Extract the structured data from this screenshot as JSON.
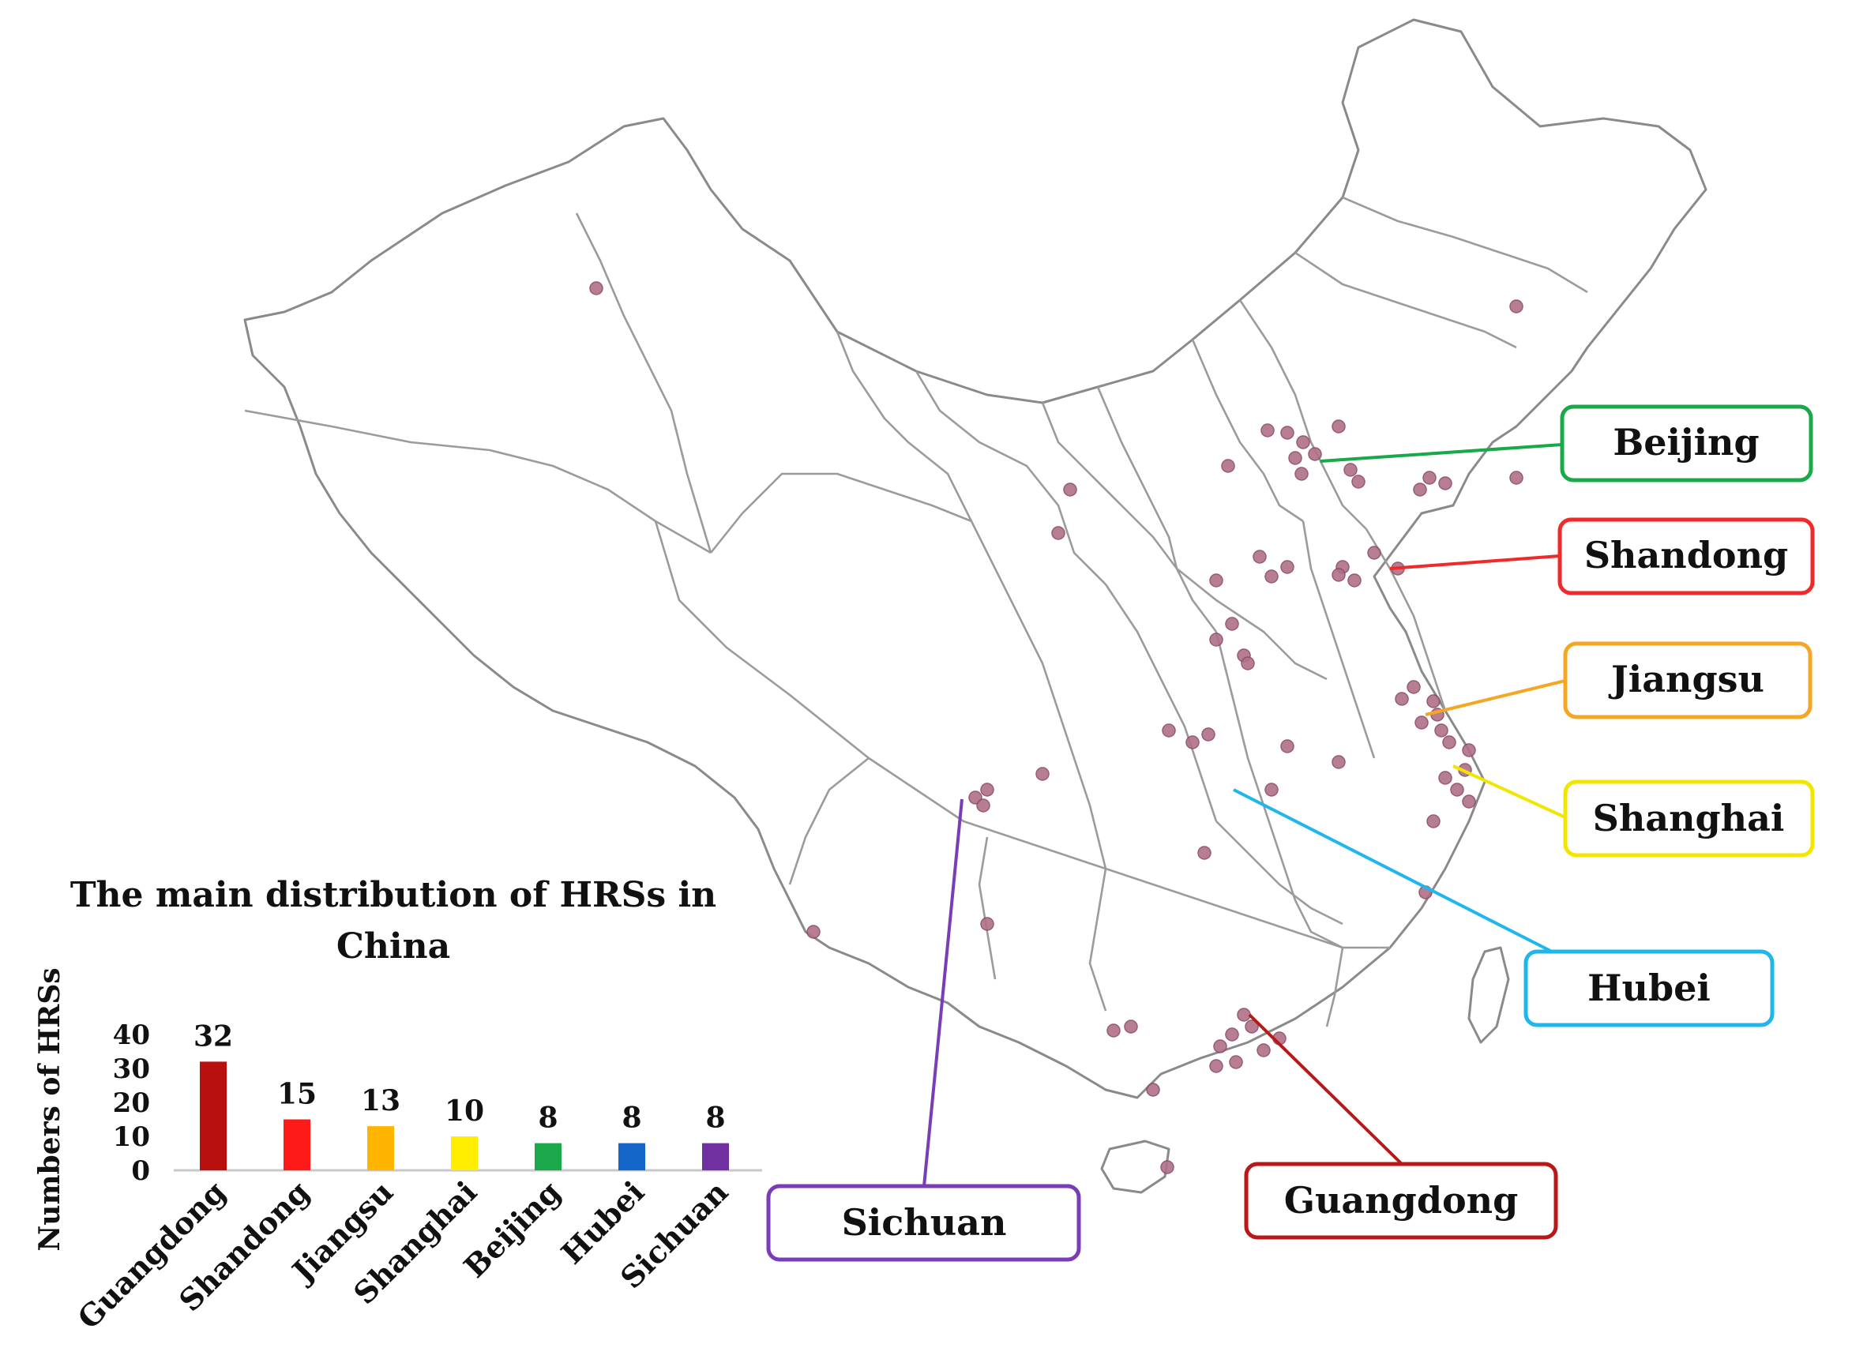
{
  "map": {
    "region": "China",
    "callouts": [
      {
        "label": "Beijing",
        "color": "#19a84a"
      },
      {
        "label": "Shandong",
        "color": "#f02a2a"
      },
      {
        "label": "Jiangsu",
        "color": "#f5a623"
      },
      {
        "label": "Shanghai",
        "color": "#f2e600"
      },
      {
        "label": "Hubei",
        "color": "#1fb6ee"
      },
      {
        "label": "Sichuan",
        "color": "#7a3db8"
      },
      {
        "label": "Guangdong",
        "color": "#b81818"
      }
    ],
    "marker_color": "#b07088"
  },
  "chart_data": {
    "type": "bar",
    "title": "The main distribution of HRSs in China",
    "title_line1": "The main distribution of HRSs in",
    "title_line2": "China",
    "ylabel": "Numbers of HRSs",
    "xlabel": "",
    "categories": [
      "Guangdong",
      "Shandong",
      "Jiangsu",
      "Shanghai",
      "Beijing",
      "Hubei",
      "Sichuan"
    ],
    "values": [
      32,
      15,
      13,
      10,
      8,
      8,
      8
    ],
    "colors": [
      "#b80f0f",
      "#ff1a1a",
      "#ffb400",
      "#ffee00",
      "#1aa84a",
      "#1467c8",
      "#7030a0"
    ],
    "yticks": [
      0,
      10,
      20,
      30,
      40
    ],
    "ylim": [
      0,
      40
    ],
    "grid": false,
    "legend": "none"
  }
}
